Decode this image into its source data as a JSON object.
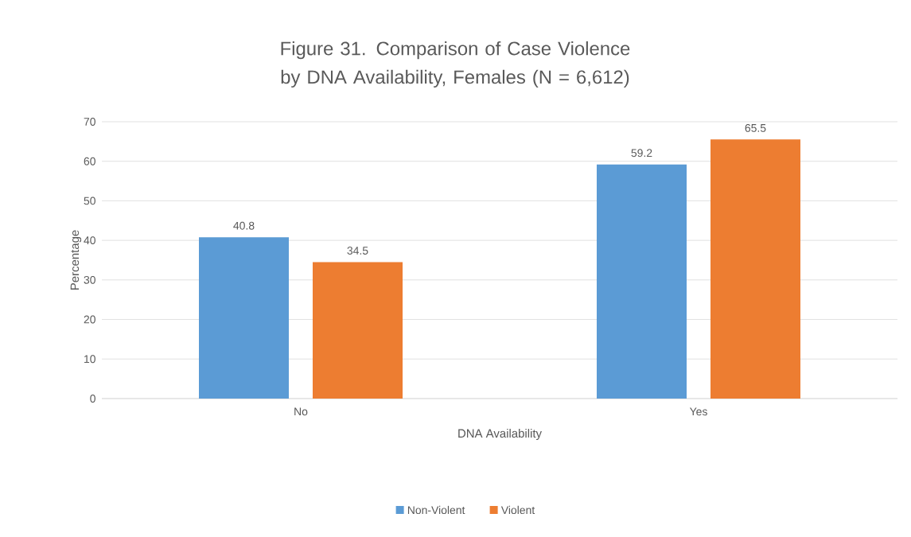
{
  "chart_data": {
    "type": "bar",
    "title": "Figure 31. Comparison of Case Violence by DNA Availability, Females (N = 6,612)",
    "xlabel": "DNA Availability",
    "ylabel": "Percentage",
    "categories": [
      "No",
      "Yes"
    ],
    "series": [
      {
        "name": "Non-Violent",
        "color": "#5b9bd5",
        "values": [
          40.8,
          59.2
        ]
      },
      {
        "name": "Violent",
        "color": "#ed7d31",
        "values": [
          34.5,
          65.5
        ]
      }
    ],
    "ylim": [
      0,
      70
    ],
    "yticks": [
      0,
      10,
      20,
      30,
      40,
      50,
      60,
      70
    ],
    "grid": "y",
    "legend": "bottom",
    "data_labels": true
  }
}
